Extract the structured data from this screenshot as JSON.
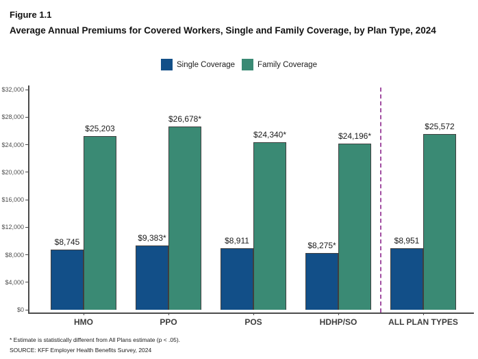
{
  "figure": {
    "label": "Figure 1.1",
    "title": "Average Annual Premiums for Covered Workers, Single and Family Coverage, by Plan Type, 2024"
  },
  "legend": [
    {
      "label": "Single Coverage",
      "color": "#124F88"
    },
    {
      "label": "Family Coverage",
      "color": "#3A8A74"
    }
  ],
  "chart_data": {
    "type": "bar",
    "title": "Average Annual Premiums for Covered Workers, Single and Family Coverage, by Plan Type, 2024",
    "categories": [
      "HMO",
      "PPO",
      "POS",
      "HDHP/SO",
      "ALL PLAN TYPES"
    ],
    "series": [
      {
        "name": "Single Coverage",
        "color": "#124F88",
        "values": [
          8745,
          9383,
          8911,
          8275,
          8951
        ],
        "labels": [
          "$8,745",
          "$9,383*",
          "$8,911",
          "$8,275*",
          "$8,951"
        ]
      },
      {
        "name": "Family Coverage",
        "color": "#3A8A74",
        "values": [
          25203,
          26678,
          24340,
          24196,
          25572
        ],
        "labels": [
          "$25,203",
          "$26,678*",
          "$24,340*",
          "$24,196*",
          "$25,572"
        ]
      }
    ],
    "y_axis": {
      "min": 0,
      "max": 32000,
      "tick_step": 4000,
      "tick_labels": [
        "$0",
        "$4,000",
        "$8,000",
        "$12,000",
        "$16,000",
        "$20,000",
        "$24,000",
        "$28,000",
        "$32,000"
      ]
    },
    "xlabel": "",
    "ylabel": "",
    "grid": false,
    "legend_position": "top",
    "separator": {
      "after_category": "HDHP/SO",
      "style": "dashed",
      "color": "#A14DA1"
    }
  },
  "footnotes": [
    "* Estimate is statistically different from All Plans estimate (p < .05).",
    "SOURCE: KFF Employer Health Benefits Survey, 2024"
  ]
}
